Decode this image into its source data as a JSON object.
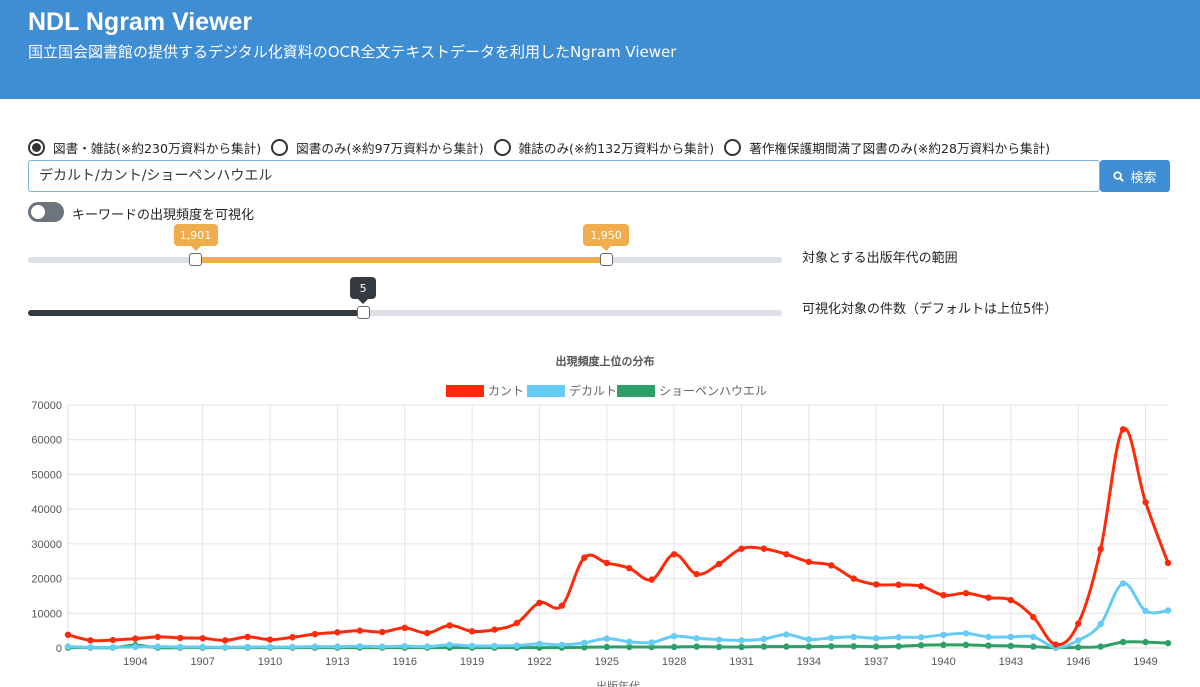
{
  "header": {
    "title": "NDL Ngram Viewer",
    "subtitle": "国立国会図書館の提供するデジタル化資料のOCR全文テキストデータを利用したNgram Viewer"
  },
  "source_options": [
    {
      "label": "図書・雑誌(※約230万資料から集計)",
      "selected": true
    },
    {
      "label": "図書のみ(※約97万資料から集計)",
      "selected": false
    },
    {
      "label": "雑誌のみ(※約132万資料から集計)",
      "selected": false
    },
    {
      "label": "著作権保護期間満了図書のみ(※約28万資料から集計)",
      "selected": false
    }
  ],
  "search": {
    "value": "デカルト/カント/ショーペンハウエル",
    "button_label": "検索",
    "button_icon": "search-icon"
  },
  "toggle": {
    "label": "キーワードの出現頻度を可視化",
    "on": false
  },
  "year_range": {
    "min": 1901,
    "max": 1950,
    "start": 1901,
    "end": 1950,
    "start_label": "1,901",
    "end_label": "1,950",
    "label": "対象とする出版年代の範囲",
    "scale_start": 1881,
    "scale_end": 1971
  },
  "top_n": {
    "value": 5,
    "value_label": "5",
    "label": "可視化対象の件数（デフォルトは上位5件）",
    "scale_min": 1,
    "scale_max": 10
  },
  "colors": {
    "header": "#3f8ed4",
    "accent": "#3f8ed4",
    "slider_range": "#f0ad4e",
    "slider_dark": "#343a40"
  },
  "chart_data": {
    "type": "line",
    "title": "出現頻度上位の分布",
    "xlabel": "出版年代",
    "ylabel": "",
    "x": [
      1901,
      1902,
      1903,
      1904,
      1905,
      1906,
      1907,
      1908,
      1909,
      1910,
      1911,
      1912,
      1913,
      1914,
      1915,
      1916,
      1917,
      1918,
      1919,
      1920,
      1921,
      1922,
      1923,
      1924,
      1925,
      1926,
      1927,
      1928,
      1929,
      1930,
      1931,
      1932,
      1933,
      1934,
      1935,
      1936,
      1937,
      1938,
      1939,
      1940,
      1941,
      1942,
      1943,
      1944,
      1945,
      1946,
      1947,
      1948,
      1949,
      1950
    ],
    "x_ticks": [
      "1904",
      "1907",
      "1910",
      "1913",
      "1916",
      "1919",
      "1922",
      "1925",
      "1928",
      "1931",
      "1934",
      "1937",
      "1940",
      "1943",
      "1946",
      "1949"
    ],
    "ylim": [
      0,
      70000
    ],
    "y_ticks": [
      "0",
      "10000",
      "20000",
      "30000",
      "40000",
      "50000",
      "60000",
      "70000"
    ],
    "grid": true,
    "legend_position": "top",
    "series": [
      {
        "name": "カント",
        "color": "#ff2a0a",
        "values": [
          3800,
          2200,
          2300,
          2700,
          3200,
          2900,
          2800,
          2200,
          3200,
          2400,
          3100,
          4000,
          4500,
          5000,
          4600,
          5800,
          4300,
          6500,
          4800,
          5300,
          7200,
          13000,
          12200,
          26000,
          24500,
          23000,
          19700,
          27000,
          21300,
          24200,
          28600,
          28600,
          27000,
          24800,
          23800,
          20000,
          18300,
          18200,
          17800,
          15200,
          15800,
          14500,
          13800,
          8900,
          1000,
          7000,
          28500,
          63000,
          42000,
          24500
        ]
      },
      {
        "name": "デカルト",
        "color": "#66ccf5",
        "values": [
          400,
          200,
          200,
          300,
          400,
          300,
          300,
          200,
          300,
          300,
          300,
          400,
          400,
          500,
          400,
          500,
          400,
          900,
          600,
          600,
          700,
          1200,
          900,
          1500,
          2700,
          1800,
          1600,
          3400,
          2800,
          2400,
          2200,
          2600,
          3900,
          2500,
          2900,
          3200,
          2800,
          3100,
          3100,
          3800,
          4200,
          3200,
          3200,
          3200,
          200,
          2200,
          6900,
          18600,
          10700,
          10800
        ]
      },
      {
        "name": "ショーペンハウエル",
        "color": "#2ca066",
        "values": [
          100,
          100,
          100,
          800,
          100,
          100,
          100,
          100,
          100,
          100,
          100,
          100,
          100,
          100,
          100,
          100,
          100,
          100,
          100,
          100,
          100,
          100,
          100,
          200,
          300,
          300,
          300,
          300,
          400,
          300,
          300,
          400,
          400,
          400,
          500,
          500,
          400,
          500,
          800,
          900,
          900,
          700,
          600,
          400,
          100,
          200,
          400,
          1700,
          1700,
          1400
        ]
      }
    ]
  }
}
